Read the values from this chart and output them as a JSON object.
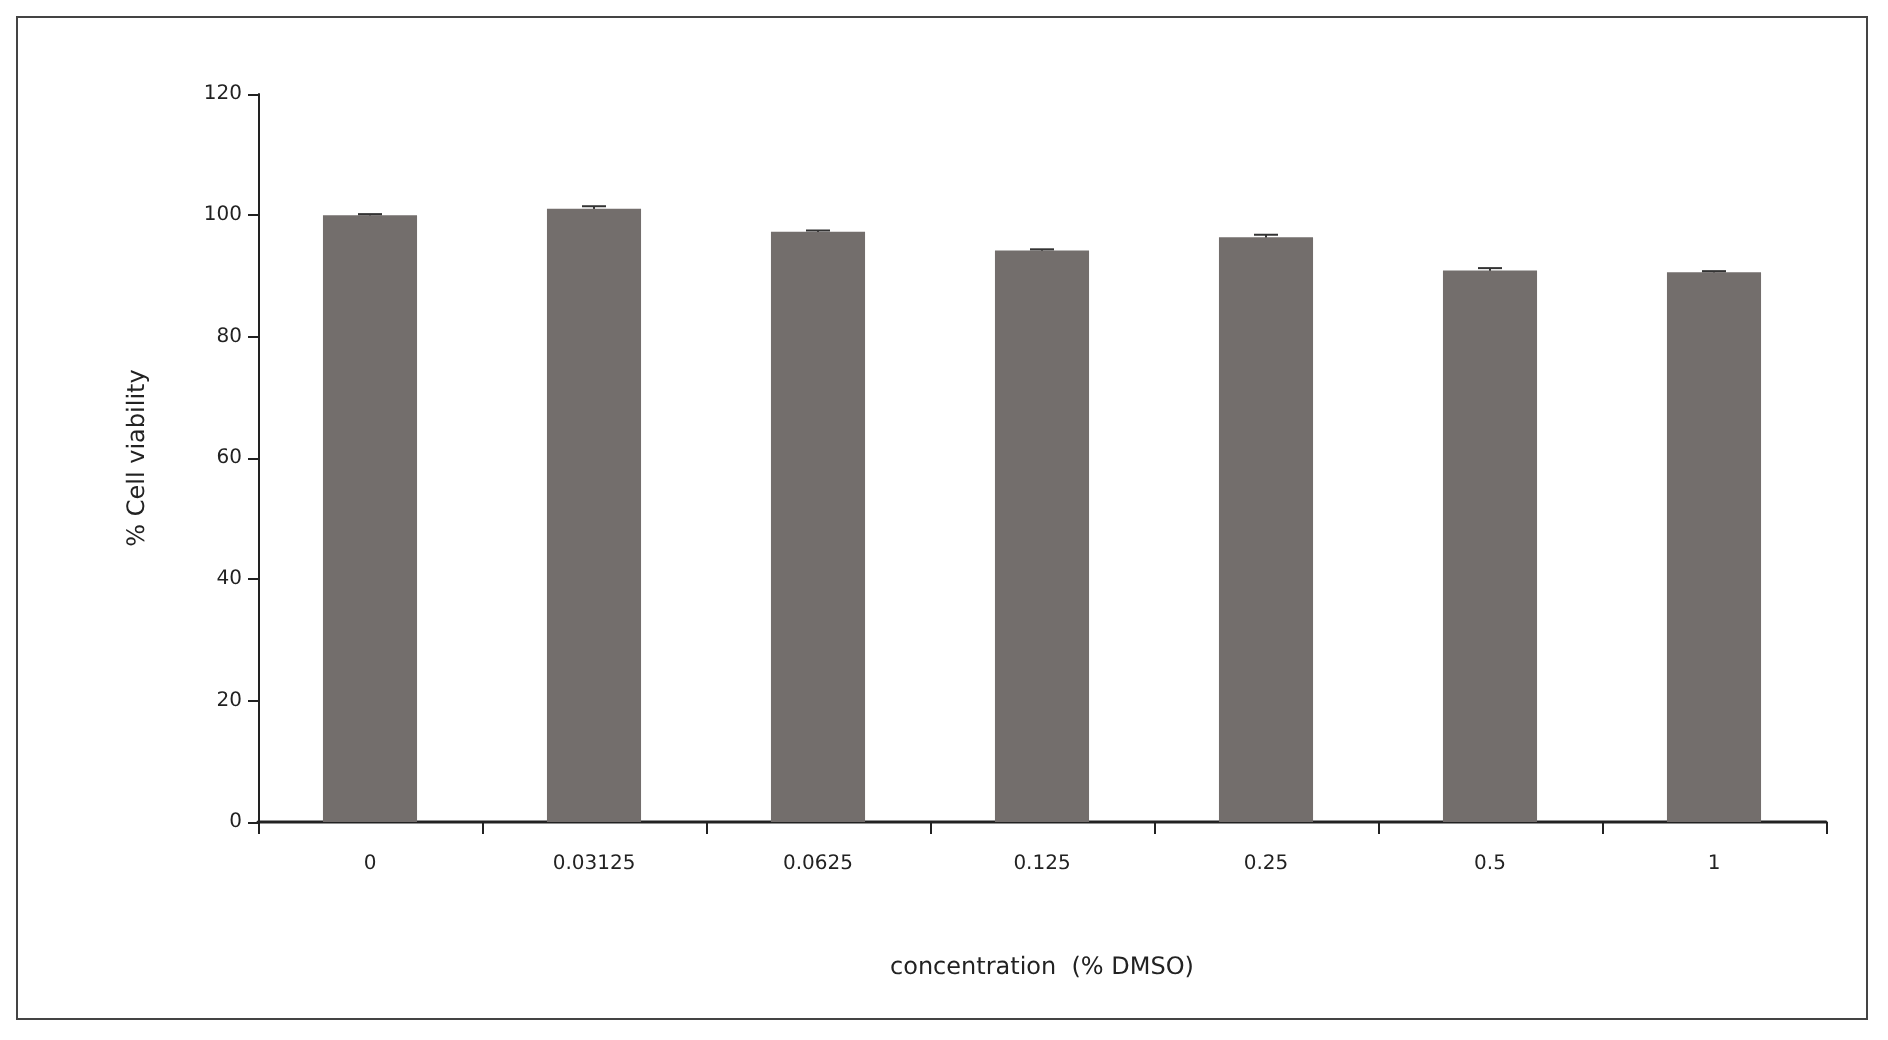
{
  "chart_data": {
    "type": "bar",
    "xlabel": "concentration  (% DMSO)",
    "ylabel": "% Cell viability",
    "categories": [
      "0",
      "0.03125",
      "0.0625",
      "0.125",
      "0.25",
      "0.5",
      "1"
    ],
    "values": [
      100,
      101.1,
      97.3,
      94.2,
      96.4,
      90.9,
      90.6
    ],
    "errors": [
      0.2,
      0.4,
      0.2,
      0.2,
      0.4,
      0.4,
      0.2
    ],
    "color": "#736e6c",
    "ylim": [
      0,
      120
    ],
    "yticks": [
      0,
      20,
      40,
      60,
      80,
      100,
      120
    ],
    "grid": false
  }
}
